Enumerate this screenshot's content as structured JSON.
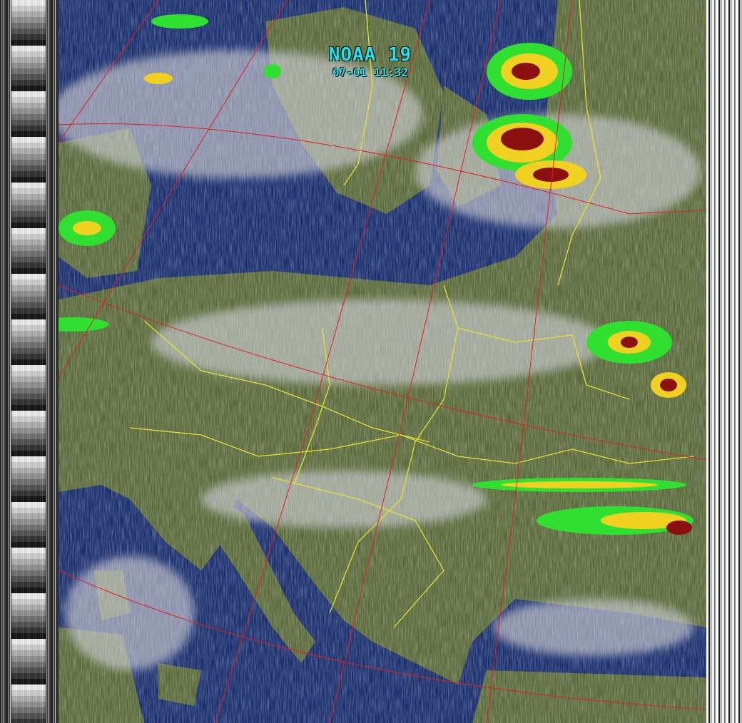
{
  "overlay": {
    "satellite": "NOAA 19",
    "timestamp": "07-01 11:32"
  },
  "colors": {
    "sea": "#1a2f6e",
    "land": "#5a6b3a",
    "cloud": "#c8c8cc",
    "graticule": "#e02020",
    "borders": "#e6e030",
    "coastline": "#90e890",
    "precip_heavy": "#8b1010",
    "precip_mid": "#f0d020",
    "precip_light": "#30e030",
    "label": "#19e6f0"
  }
}
